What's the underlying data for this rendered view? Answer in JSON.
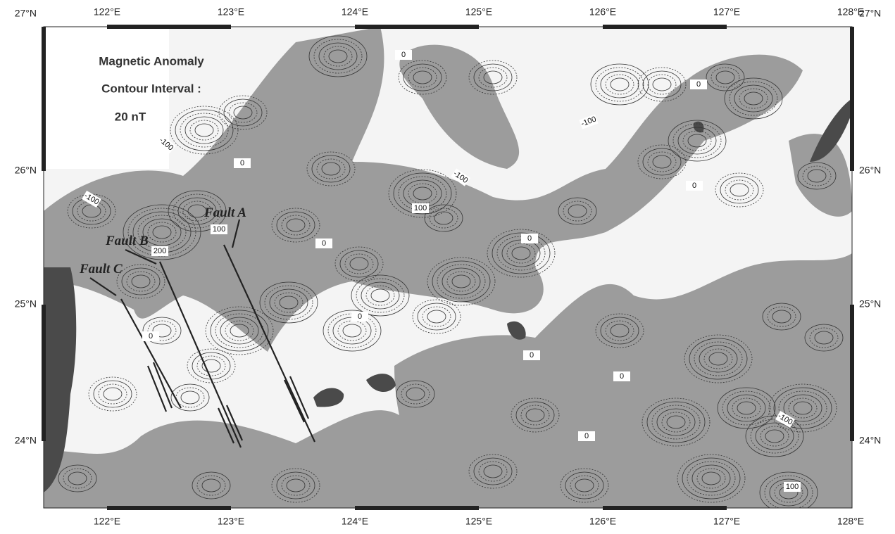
{
  "legend": {
    "title": "Magnetic Anomaly",
    "interval": "Contour Interval :",
    "unit": "20 nT"
  },
  "longitudes": [
    "122°E",
    "123°E",
    "124°E",
    "125°E",
    "126°E",
    "127°E",
    "128°E"
  ],
  "latitudes": [
    "27°N",
    "26°N",
    "25°N",
    "24°N"
  ],
  "faults": [
    "Fault A",
    "Fault B",
    "Fault C"
  ],
  "contour_labels": [
    "0",
    "-100",
    "0",
    "-100",
    "100",
    "-100",
    "0",
    "100",
    "200",
    "0",
    "0",
    "-100",
    "0",
    "0",
    "0",
    "0",
    "0",
    "0",
    "-100",
    "100"
  ]
}
